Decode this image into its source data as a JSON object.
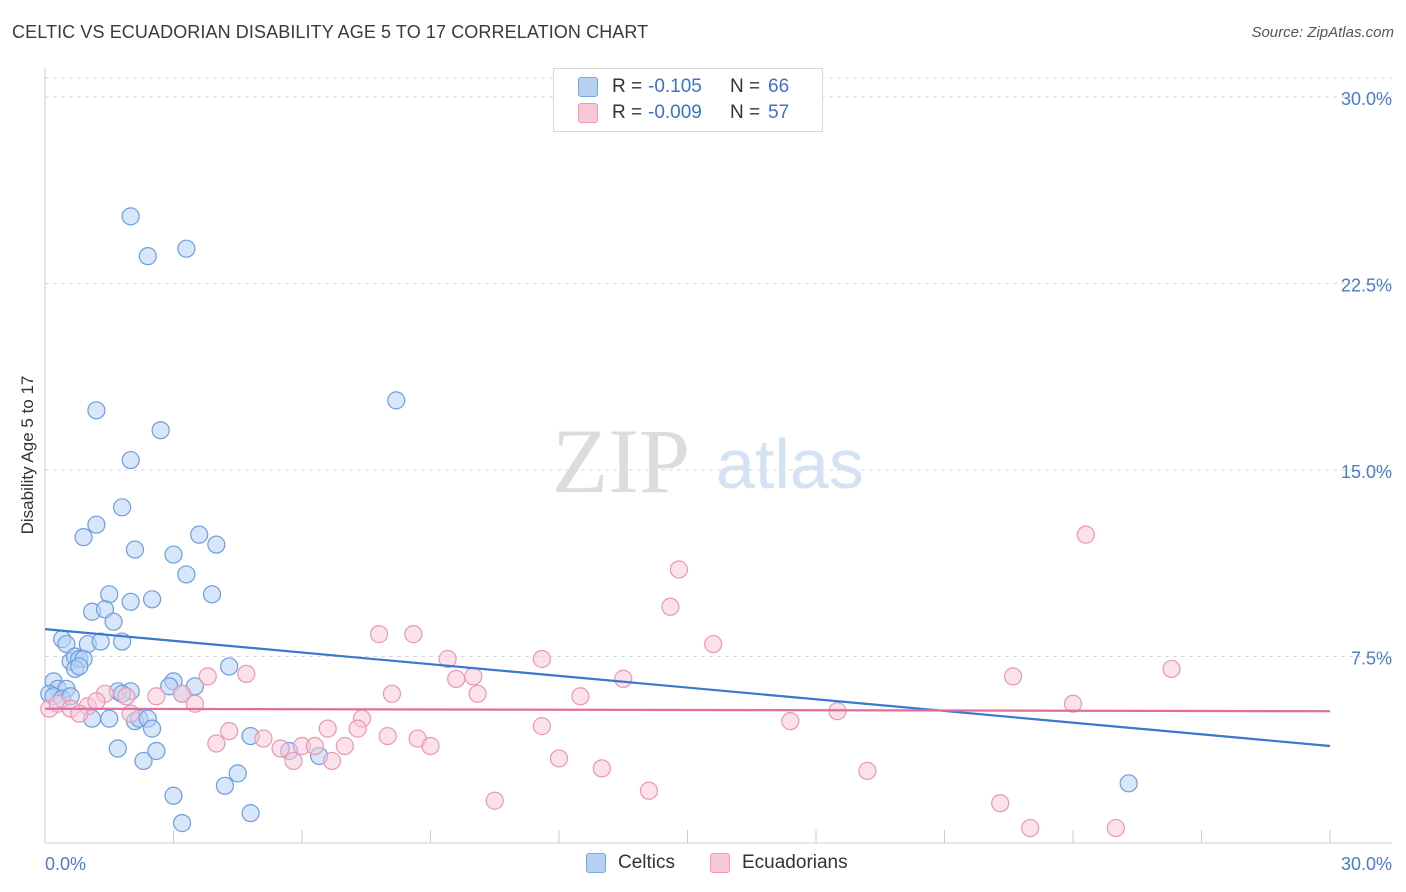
{
  "title": "CELTIC VS ECUADORIAN DISABILITY AGE 5 TO 17 CORRELATION CHART",
  "source": "Source: ZipAtlas.com",
  "watermark": {
    "zip": "ZIP",
    "atlas": "atlas"
  },
  "legend": {
    "celtics": {
      "r_label": "R =",
      "r_value": "-0.105",
      "n_label": "N =",
      "n_value": "66"
    },
    "ecuadorians": {
      "r_label": "R =",
      "r_value": "-0.009",
      "n_label": "N =",
      "n_value": "57"
    }
  },
  "bottom_legend": {
    "celtics": "Celtics",
    "ecuadorians": "Ecuadorians"
  },
  "colors": {
    "celtics_fill": "#b7d1f3",
    "celtics_stroke": "#6d9de0",
    "celtics_line": "#3a78d0",
    "ecuadorians_fill": "#f8c8d8",
    "ecuadorians_stroke": "#ec97b3",
    "ecuadorians_line": "#e26d96",
    "tick_text": "#4a7cc9",
    "grid": "#d9d9d9"
  },
  "chart_data": {
    "type": "scatter",
    "title": "CELTIC VS ECUADORIAN DISABILITY AGE 5 TO 17 CORRELATION CHART",
    "xlabel": "",
    "ylabel": "Disability Age 5 to 17",
    "xlim": [
      0,
      30
    ],
    "ylim": [
      0,
      30
    ],
    "x_tick_labels": [
      "0.0%",
      "30.0%"
    ],
    "y_ticks": [
      7.5,
      15.0,
      22.5,
      30.0
    ],
    "y_tick_labels": [
      "7.5%",
      "15.0%",
      "22.5%",
      "30.0%"
    ],
    "grid": true,
    "series": [
      {
        "name": "Celtics",
        "r": -0.105,
        "n": 66,
        "trend": {
          "x": [
            0,
            30
          ],
          "y": [
            8.6,
            3.9
          ]
        },
        "points": [
          [
            2.0,
            25.2
          ],
          [
            2.4,
            23.6
          ],
          [
            3.3,
            23.9
          ],
          [
            8.2,
            17.8
          ],
          [
            1.2,
            17.4
          ],
          [
            2.7,
            16.6
          ],
          [
            2.0,
            15.4
          ],
          [
            1.8,
            13.5
          ],
          [
            1.2,
            12.8
          ],
          [
            0.9,
            12.3
          ],
          [
            3.6,
            12.4
          ],
          [
            4.0,
            12.0
          ],
          [
            2.1,
            11.8
          ],
          [
            3.0,
            11.6
          ],
          [
            3.3,
            10.8
          ],
          [
            1.5,
            10.0
          ],
          [
            2.5,
            9.8
          ],
          [
            3.9,
            10.0
          ],
          [
            1.1,
            9.3
          ],
          [
            1.4,
            9.4
          ],
          [
            1.6,
            8.9
          ],
          [
            2.0,
            9.7
          ],
          [
            0.4,
            8.2
          ],
          [
            0.5,
            8.0
          ],
          [
            1.0,
            8.0
          ],
          [
            1.3,
            8.1
          ],
          [
            1.8,
            8.1
          ],
          [
            0.6,
            7.3
          ],
          [
            0.7,
            7.5
          ],
          [
            0.8,
            7.4
          ],
          [
            0.9,
            7.4
          ],
          [
            0.7,
            7.0
          ],
          [
            0.8,
            7.1
          ],
          [
            4.3,
            7.1
          ],
          [
            0.2,
            6.5
          ],
          [
            0.3,
            6.2
          ],
          [
            0.5,
            6.2
          ],
          [
            0.1,
            6.0
          ],
          [
            0.2,
            5.9
          ],
          [
            0.4,
            5.8
          ],
          [
            0.6,
            5.9
          ],
          [
            3.0,
            6.5
          ],
          [
            1.7,
            6.1
          ],
          [
            2.0,
            6.1
          ],
          [
            2.9,
            6.3
          ],
          [
            3.2,
            6.0
          ],
          [
            1.1,
            5.0
          ],
          [
            1.5,
            5.0
          ],
          [
            2.1,
            4.9
          ],
          [
            2.2,
            5.0
          ],
          [
            2.4,
            5.0
          ],
          [
            2.5,
            4.6
          ],
          [
            1.7,
            3.8
          ],
          [
            2.3,
            3.3
          ],
          [
            2.6,
            3.7
          ],
          [
            4.8,
            4.3
          ],
          [
            5.7,
            3.7
          ],
          [
            6.4,
            3.5
          ],
          [
            4.5,
            2.8
          ],
          [
            4.2,
            2.3
          ],
          [
            3.0,
            1.9
          ],
          [
            4.8,
            1.2
          ],
          [
            3.2,
            0.8
          ],
          [
            25.3,
            2.4
          ],
          [
            1.8,
            6.0
          ],
          [
            3.5,
            6.3
          ]
        ]
      },
      {
        "name": "Ecuadorians",
        "r": -0.009,
        "n": 57,
        "trend": {
          "x": [
            0,
            30
          ],
          "y": [
            5.4,
            5.3
          ]
        },
        "points": [
          [
            24.3,
            12.4
          ],
          [
            14.8,
            11.0
          ],
          [
            14.6,
            9.5
          ],
          [
            7.8,
            8.4
          ],
          [
            8.6,
            8.4
          ],
          [
            15.6,
            8.0
          ],
          [
            9.4,
            7.4
          ],
          [
            11.6,
            7.4
          ],
          [
            13.5,
            6.6
          ],
          [
            10.0,
            6.7
          ],
          [
            22.6,
            6.7
          ],
          [
            26.3,
            7.0
          ],
          [
            3.8,
            6.7
          ],
          [
            4.7,
            6.8
          ],
          [
            9.6,
            6.6
          ],
          [
            10.1,
            6.0
          ],
          [
            8.1,
            6.0
          ],
          [
            12.5,
            5.9
          ],
          [
            3.2,
            6.0
          ],
          [
            3.5,
            5.6
          ],
          [
            2.6,
            5.9
          ],
          [
            1.4,
            6.0
          ],
          [
            1.9,
            5.9
          ],
          [
            1.0,
            5.5
          ],
          [
            0.1,
            5.4
          ],
          [
            0.3,
            5.6
          ],
          [
            0.6,
            5.4
          ],
          [
            0.8,
            5.2
          ],
          [
            2.0,
            5.2
          ],
          [
            24.0,
            5.6
          ],
          [
            18.5,
            5.3
          ],
          [
            17.4,
            4.9
          ],
          [
            11.6,
            4.7
          ],
          [
            7.4,
            5.0
          ],
          [
            6.6,
            4.6
          ],
          [
            7.3,
            4.6
          ],
          [
            4.3,
            4.5
          ],
          [
            5.1,
            4.2
          ],
          [
            5.5,
            3.8
          ],
          [
            6.0,
            3.9
          ],
          [
            6.3,
            3.9
          ],
          [
            4.0,
            4.0
          ],
          [
            8.0,
            4.3
          ],
          [
            8.7,
            4.2
          ],
          [
            9.0,
            3.9
          ],
          [
            7.0,
            3.9
          ],
          [
            5.8,
            3.3
          ],
          [
            6.7,
            3.3
          ],
          [
            12.0,
            3.4
          ],
          [
            13.0,
            3.0
          ],
          [
            19.2,
            2.9
          ],
          [
            14.1,
            2.1
          ],
          [
            10.5,
            1.7
          ],
          [
            22.3,
            1.6
          ],
          [
            23.0,
            0.6
          ],
          [
            25.0,
            0.6
          ],
          [
            1.2,
            5.7
          ]
        ]
      }
    ]
  }
}
